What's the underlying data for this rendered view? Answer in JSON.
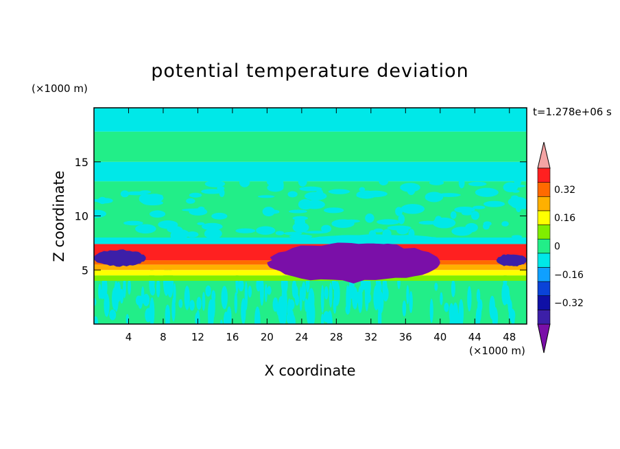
{
  "chart_data": {
    "type": "heatmap",
    "title": "potential temperature deviation",
    "xlabel": "X coordinate",
    "ylabel": "Z coordinate",
    "x_unit": "(×1000 m)",
    "y_unit": "(×1000 m)",
    "time_label": "t=1.278e+06 s",
    "xlim": [
      0,
      50
    ],
    "ylim": [
      0,
      20
    ],
    "x_ticks": [
      4,
      8,
      12,
      16,
      20,
      24,
      28,
      32,
      36,
      40,
      44,
      48
    ],
    "y_ticks": [
      5,
      10,
      15
    ],
    "colorbar": {
      "levels": [
        -0.48,
        -0.4,
        -0.32,
        -0.24,
        -0.16,
        -0.08,
        0,
        0.08,
        0.16,
        0.24,
        0.32,
        0.4,
        0.48
      ],
      "tick_labels": [
        "−0.32",
        "−0.16",
        "0",
        "0.16",
        "0.32"
      ],
      "tick_values": [
        -0.32,
        -0.16,
        0,
        0.16,
        0.32
      ],
      "colors": [
        "#7a0fa8",
        "#3c1fa8",
        "#0f10a6",
        "#0a43d8",
        "#0fa0ff",
        "#00e8e8",
        "#22ee88",
        "#80ee00",
        "#ffff00",
        "#ffb000",
        "#ff6a00",
        "#ff2020",
        "#f4a4a4"
      ],
      "extend": "both"
    },
    "regions": [
      {
        "type": "band",
        "z": [
          0,
          4.0
        ],
        "value": 0.04,
        "pattern": "streaks",
        "alt_value": -0.04
      },
      {
        "type": "band",
        "z": [
          4.0,
          4.5
        ],
        "value": 0.12
      },
      {
        "type": "band",
        "z": [
          4.5,
          5.0
        ],
        "value": 0.2
      },
      {
        "type": "band",
        "z": [
          5.0,
          5.5
        ],
        "value": 0.28
      },
      {
        "type": "band",
        "z": [
          5.5,
          5.9
        ],
        "value": 0.36
      },
      {
        "type": "band",
        "z": [
          5.9,
          7.4
        ],
        "value": 0.44
      },
      {
        "type": "band",
        "z": [
          7.4,
          8.0
        ],
        "value": -0.04
      },
      {
        "type": "band",
        "z": [
          8.0,
          13.2
        ],
        "value": 0.04,
        "pattern": "noise",
        "alt_value": -0.04
      },
      {
        "type": "band",
        "z": [
          13.2,
          15.0
        ],
        "value": -0.04
      },
      {
        "type": "band",
        "z": [
          15.0,
          17.8
        ],
        "value": 0.04
      },
      {
        "type": "band",
        "z": [
          17.8,
          20
        ],
        "value": -0.04
      },
      {
        "type": "blob",
        "x": [
          20,
          40
        ],
        "z": [
          3.8,
          7.6
        ],
        "value": -0.44
      },
      {
        "type": "blob",
        "x": [
          0,
          6
        ],
        "z": [
          5.3,
          6.9
        ],
        "value": -0.36
      },
      {
        "type": "blob",
        "x": [
          46.5,
          50
        ],
        "z": [
          5.3,
          6.5
        ],
        "value": -0.36
      },
      {
        "type": "blob",
        "x": [
          25,
          40
        ],
        "z": [
          7.4,
          8.3
        ],
        "value": -0.08
      }
    ]
  }
}
